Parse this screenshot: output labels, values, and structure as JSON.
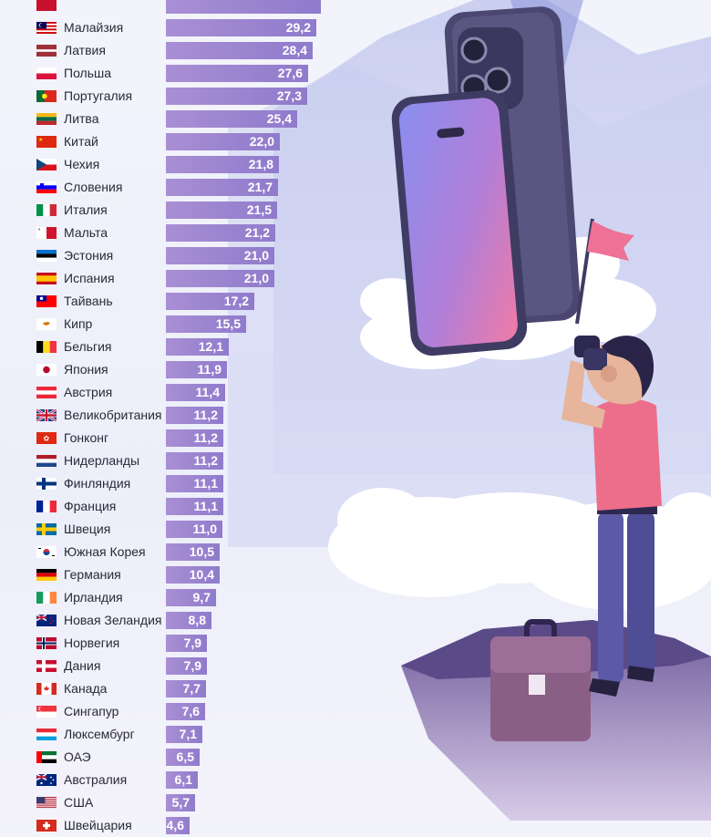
{
  "chart_data": {
    "type": "bar",
    "orientation": "horizontal",
    "max_value": 30,
    "rows": [
      {
        "country": "",
        "value": null,
        "flag": "partial"
      },
      {
        "country": "Малайзия",
        "value": "29,2",
        "num": 29.2,
        "flag": "my"
      },
      {
        "country": "Латвия",
        "value": "28,4",
        "num": 28.4,
        "flag": "lv"
      },
      {
        "country": "Польша",
        "value": "27,6",
        "num": 27.6,
        "flag": "pl"
      },
      {
        "country": "Португалия",
        "value": "27,3",
        "num": 27.3,
        "flag": "pt"
      },
      {
        "country": "Литва",
        "value": "25,4",
        "num": 25.4,
        "flag": "lt"
      },
      {
        "country": "Китай",
        "value": "22,0",
        "num": 22.0,
        "flag": "cn"
      },
      {
        "country": "Чехия",
        "value": "21,8",
        "num": 21.8,
        "flag": "cz"
      },
      {
        "country": "Словения",
        "value": "21,7",
        "num": 21.7,
        "flag": "si"
      },
      {
        "country": "Италия",
        "value": "21,5",
        "num": 21.5,
        "flag": "it"
      },
      {
        "country": "Мальта",
        "value": "21,2",
        "num": 21.2,
        "flag": "mt"
      },
      {
        "country": "Эстония",
        "value": "21,0",
        "num": 21.0,
        "flag": "ee"
      },
      {
        "country": "Испания",
        "value": "21,0",
        "num": 21.0,
        "flag": "es"
      },
      {
        "country": "Тайвань",
        "value": "17,2",
        "num": 17.2,
        "flag": "tw"
      },
      {
        "country": "Кипр",
        "value": "15,5",
        "num": 15.5,
        "flag": "cy"
      },
      {
        "country": "Бельгия",
        "value": "12,1",
        "num": 12.1,
        "flag": "be"
      },
      {
        "country": "Япония",
        "value": "11,9",
        "num": 11.9,
        "flag": "jp"
      },
      {
        "country": "Австрия",
        "value": "11,4",
        "num": 11.4,
        "flag": "at"
      },
      {
        "country": "Великобритания",
        "value": "11,2",
        "num": 11.2,
        "flag": "gb"
      },
      {
        "country": "Гонконг",
        "value": "11,2",
        "num": 11.2,
        "flag": "hk"
      },
      {
        "country": "Нидерланды",
        "value": "11,2",
        "num": 11.2,
        "flag": "nl"
      },
      {
        "country": "Финляндия",
        "value": "11,1",
        "num": 11.1,
        "flag": "fi"
      },
      {
        "country": "Франция",
        "value": "11,1",
        "num": 11.1,
        "flag": "fr"
      },
      {
        "country": "Швеция",
        "value": "11,0",
        "num": 11.0,
        "flag": "se"
      },
      {
        "country": "Южная Корея",
        "value": "10,5",
        "num": 10.5,
        "flag": "kr"
      },
      {
        "country": "Германия",
        "value": "10,4",
        "num": 10.4,
        "flag": "de"
      },
      {
        "country": "Ирландия",
        "value": "9,7",
        "num": 9.7,
        "flag": "ie"
      },
      {
        "country": "Новая Зеландия",
        "value": "8,8",
        "num": 8.8,
        "flag": "nz"
      },
      {
        "country": "Норвегия",
        "value": "7,9",
        "num": 7.9,
        "flag": "no"
      },
      {
        "country": "Дания",
        "value": "7,9",
        "num": 7.9,
        "flag": "dk"
      },
      {
        "country": "Канада",
        "value": "7,7",
        "num": 7.7,
        "flag": "ca"
      },
      {
        "country": "Сингапур",
        "value": "7,6",
        "num": 7.6,
        "flag": "sg"
      },
      {
        "country": "Люксембург",
        "value": "7,1",
        "num": 7.1,
        "flag": "lu"
      },
      {
        "country": "ОАЭ",
        "value": "6,5",
        "num": 6.5,
        "flag": "ae"
      },
      {
        "country": "Австралия",
        "value": "6,1",
        "num": 6.1,
        "flag": "au"
      },
      {
        "country": "США",
        "value": "5,7",
        "num": 5.7,
        "flag": "us"
      },
      {
        "country": "Швейцария",
        "value": "4,6",
        "num": 4.6,
        "flag": "ch"
      }
    ]
  },
  "illustration": {
    "icons": [
      "smartphone-front-icon",
      "smartphone-back-icon",
      "flag-icon",
      "briefcase-icon",
      "person-with-binoculars-icon",
      "cloud-icon",
      "mountain-icon"
    ],
    "colors": {
      "bar": "#9a86d0",
      "shirt": "#ec6e8a",
      "trousers": "#5c5aa6",
      "phone": "#4e4a72"
    }
  }
}
